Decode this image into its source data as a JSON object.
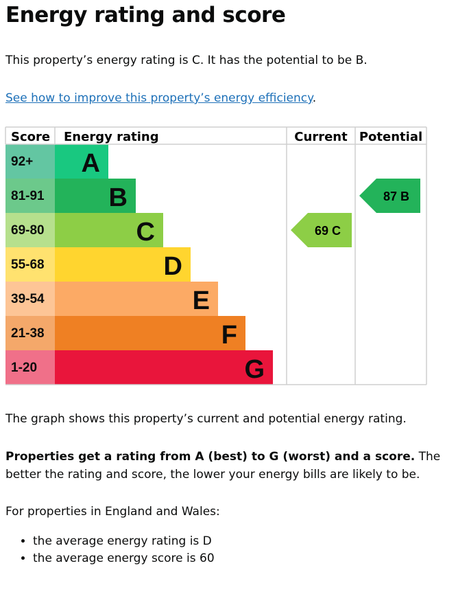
{
  "title": "Energy rating and score",
  "intro": "This property’s energy rating is C. It has the potential to be B.",
  "link": "See how to improve this property’s energy efficiency",
  "link_suffix": ".",
  "chart_data": {
    "type": "table",
    "headers": {
      "score": "Score",
      "rating": "Energy rating",
      "current": "Current",
      "potential": "Potential"
    },
    "bands": [
      {
        "score": "92+",
        "letter": "A",
        "color": "#19c880",
        "score_color": "#63c6a2"
      },
      {
        "score": "81-91",
        "letter": "B",
        "color": "#23b35a",
        "score_color": "#6cc98b"
      },
      {
        "score": "69-80",
        "letter": "C",
        "color": "#8dce46",
        "score_color": "#b6e08d"
      },
      {
        "score": "55-68",
        "letter": "D",
        "color": "#ffd52f",
        "score_color": "#ffe26f"
      },
      {
        "score": "39-54",
        "letter": "E",
        "color": "#fcaa65",
        "score_color": "#fdc596"
      },
      {
        "score": "21-38",
        "letter": "F",
        "color": "#ef8023",
        "score_color": "#f4a86a"
      },
      {
        "score": "1-20",
        "letter": "G",
        "color": "#e9153b",
        "score_color": "#f07089"
      }
    ],
    "current": {
      "score": 69,
      "letter": "C",
      "label": "69  C",
      "color": "#8dce46"
    },
    "potential": {
      "score": 87,
      "letter": "B",
      "label": "87  B",
      "color": "#23b35a"
    }
  },
  "graph_note": "The graph shows this property’s current and potential energy rating.",
  "rating_bold": "Properties get a rating from A (best) to G (worst) and a score.",
  "rating_rest": " The better the rating and score, the lower your energy bills are likely to be.",
  "region": "For properties in England and Wales:",
  "averages": [
    "the average energy rating is D",
    "the average energy score is 60"
  ]
}
